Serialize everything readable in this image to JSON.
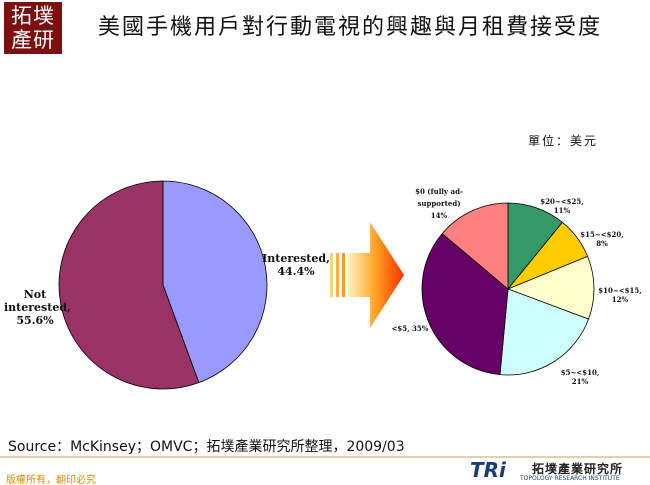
{
  "header": {
    "badge": "拓墣產研",
    "title": "美國手機用戶對行動電視的興趣與月租費接受度",
    "unit": "單位：美元"
  },
  "chart_data": [
    {
      "type": "pie",
      "values": [
        44.4,
        55.6
      ],
      "value_labels": [
        "Interested, 44.4%",
        "Not interested, 55.6%"
      ],
      "colors": [
        "#9999ff",
        "#993366"
      ]
    },
    {
      "type": "pie",
      "values": [
        11,
        8,
        12,
        21,
        35,
        14
      ],
      "value_labels": [
        "$20~<$25, 11%",
        "$15~<$20, 8%",
        "$10~<$15, 12%",
        "$5~<$10, 21%",
        "<$5, 35%",
        "$0 (fully ad-supported) 14%"
      ],
      "colors": [
        "#339966",
        "#ffcc00",
        "#ffffcc",
        "#ccffff",
        "#660066",
        "#ff8080"
      ]
    }
  ],
  "source": "Source：McKinsey；OMVC；拓墣產業研究所整理，2009/03",
  "footer": {
    "copyright": "版權所有，翻印必究",
    "logo": "TRi",
    "org": "拓墣產業研究所",
    "org_en": "TOPOLOGY RESEARCH INSTITUTE"
  }
}
